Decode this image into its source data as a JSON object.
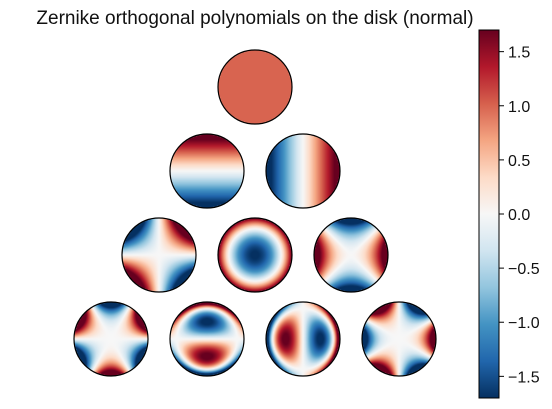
{
  "chart_data": {
    "type": "heatmap",
    "title": "Zernike orthogonal polynomials on the disk (normal)",
    "colormap": "RdBu_r",
    "colorbar": {
      "range": [
        -1.7,
        1.7
      ],
      "ticks": [
        1.5,
        1.0,
        0.5,
        0.0,
        -0.5,
        -1.0,
        -1.5
      ],
      "tick_labels": [
        "1.5",
        "1.0",
        "0.5",
        "0.0",
        "−0.5",
        "−1.0",
        "−1.5"
      ]
    },
    "disks": [
      {
        "row": 0,
        "col": 0,
        "n": 0,
        "m": 0
      },
      {
        "row": 1,
        "col": 0,
        "n": 1,
        "m": -1
      },
      {
        "row": 1,
        "col": 1,
        "n": 1,
        "m": 1
      },
      {
        "row": 2,
        "col": 0,
        "n": 2,
        "m": -2
      },
      {
        "row": 2,
        "col": 1,
        "n": 2,
        "m": 0
      },
      {
        "row": 2,
        "col": 2,
        "n": 2,
        "m": 2
      },
      {
        "row": 3,
        "col": 0,
        "n": 3,
        "m": -3
      },
      {
        "row": 3,
        "col": 1,
        "n": 3,
        "m": -1
      },
      {
        "row": 3,
        "col": 2,
        "n": 3,
        "m": 1
      },
      {
        "row": 3,
        "col": 3,
        "n": 3,
        "m": 3
      }
    ]
  }
}
